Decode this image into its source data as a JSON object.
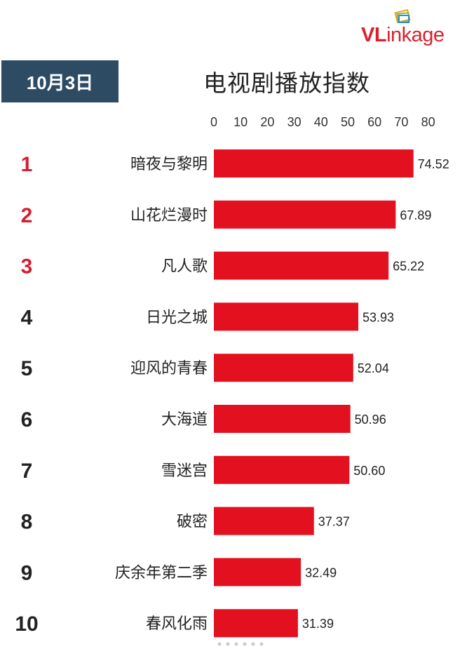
{
  "logo": {
    "text_v": "VL",
    "text_rest": "inkage"
  },
  "date_badge": "10月3日",
  "colors": {
    "bar": "#e3101f",
    "top3_rank": "#d42030",
    "other_rank": "#222222",
    "badge": "#2d4c63"
  },
  "chart_data": {
    "type": "bar",
    "orientation": "horizontal",
    "title": "电视剧播放指数",
    "xlim": [
      0,
      80
    ],
    "x_ticks": [
      0,
      10,
      20,
      30,
      40,
      50,
      60,
      70,
      80
    ],
    "grid": false,
    "ranks": [
      "1",
      "2",
      "3",
      "4",
      "5",
      "6",
      "7",
      "8",
      "9",
      "10"
    ],
    "categories": [
      "暗夜与黎明",
      "山花烂漫时",
      "凡人歌",
      "日光之城",
      "迎风的青春",
      "大海道",
      "雪迷宫",
      "破密",
      "庆余年第二季",
      "春风化雨"
    ],
    "values": [
      74.52,
      67.89,
      65.22,
      53.93,
      52.04,
      50.96,
      50.6,
      37.37,
      32.49,
      31.39
    ],
    "value_labels": [
      "74.52",
      "67.89",
      "65.22",
      "53.93",
      "52.04",
      "50.96",
      "50.60",
      "37.37",
      "32.49",
      "31.39"
    ]
  }
}
